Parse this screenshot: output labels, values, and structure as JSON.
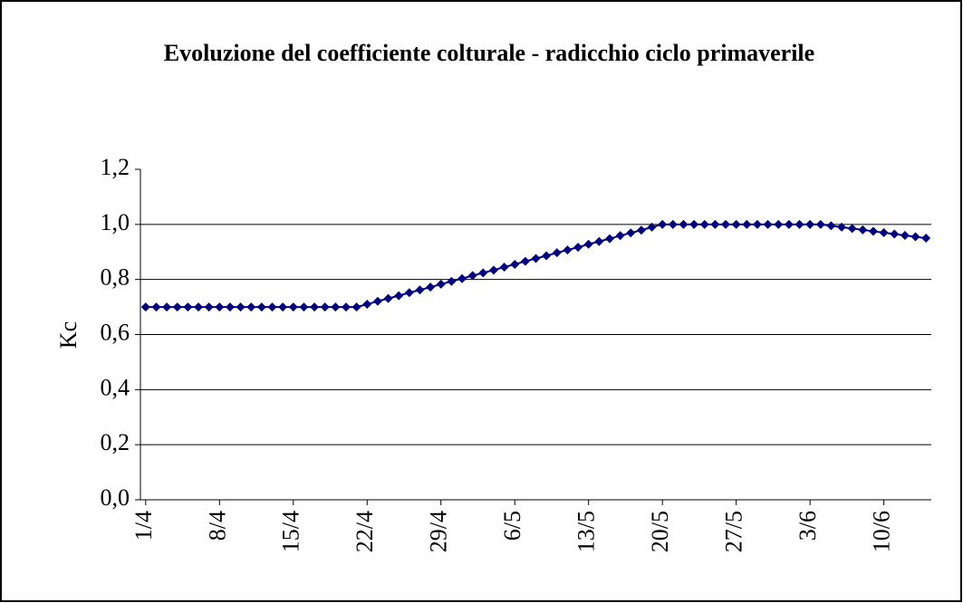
{
  "chart_data": {
    "type": "line",
    "title": "Evoluzione del coefficiente colturale - radicchio ciclo primaverile",
    "y_label": "Kc",
    "categories": [
      "1/4",
      null,
      null,
      null,
      null,
      null,
      null,
      "8/4",
      null,
      null,
      null,
      null,
      null,
      null,
      "15/4",
      null,
      null,
      null,
      null,
      null,
      null,
      "22/4",
      null,
      null,
      null,
      null,
      null,
      null,
      "29/4",
      null,
      null,
      null,
      null,
      null,
      null,
      "6/5",
      null,
      null,
      null,
      null,
      null,
      null,
      "13/5",
      null,
      null,
      null,
      null,
      null,
      null,
      "20/5",
      null,
      null,
      null,
      null,
      null,
      null,
      "27/5",
      null,
      null,
      null,
      null,
      null,
      null,
      "3/6",
      null,
      null,
      null,
      null,
      null,
      null,
      "10/6",
      null,
      null,
      null,
      null
    ],
    "series": [
      {
        "name": "Kc",
        "color": "#000080",
        "values": [
          0.7,
          0.7,
          0.7,
          0.7,
          0.7,
          0.7,
          0.7,
          0.7,
          0.7,
          0.7,
          0.7,
          0.7,
          0.7,
          0.7,
          0.7,
          0.7,
          0.7,
          0.7,
          0.7,
          0.7,
          0.7,
          0.71,
          0.721,
          0.731,
          0.741,
          0.752,
          0.762,
          0.772,
          0.783,
          0.793,
          0.803,
          0.814,
          0.824,
          0.834,
          0.845,
          0.855,
          0.866,
          0.876,
          0.886,
          0.897,
          0.907,
          0.917,
          0.928,
          0.938,
          0.948,
          0.959,
          0.969,
          0.979,
          0.99,
          1.0,
          1.0,
          1.0,
          1.0,
          1.0,
          1.0,
          1.0,
          1.0,
          1.0,
          1.0,
          1.0,
          1.0,
          1.0,
          1.0,
          1.0,
          1.0,
          0.995,
          0.99,
          0.985,
          0.98,
          0.975,
          0.97,
          0.965,
          0.96,
          0.955,
          0.95
        ]
      }
    ],
    "ylim": [
      0,
      1.2
    ],
    "yticks": [
      {
        "value": 0,
        "label": "0,0"
      },
      {
        "value": 0.2,
        "label": "0,2"
      },
      {
        "value": 0.4,
        "label": "0,4"
      },
      {
        "value": 0.6,
        "label": "0,6"
      },
      {
        "value": 0.8,
        "label": "0,8"
      },
      {
        "value": 1.0,
        "label": "1,0"
      },
      {
        "value": 1.2,
        "label": "1,2"
      }
    ],
    "grid": true
  }
}
